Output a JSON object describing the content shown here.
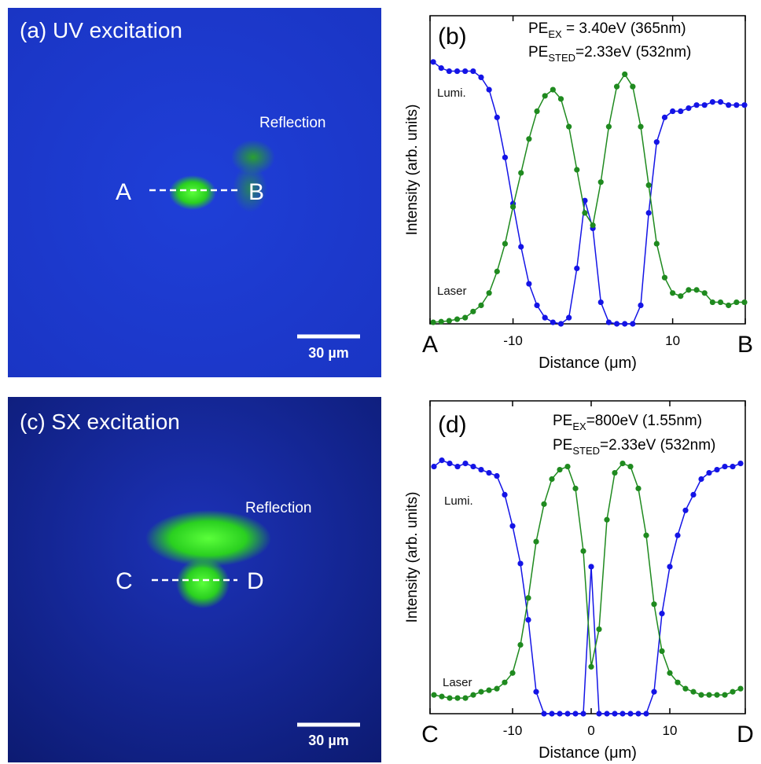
{
  "images": [
    {
      "title": "(a) UV excitation",
      "reflection": "Reflection",
      "start": "A",
      "end": "B",
      "scale_bar": "30 µm"
    },
    {
      "title": "(c) SX excitation",
      "reflection": "Reflection",
      "start": "C",
      "end": "D",
      "scale_bar": "30 µm"
    }
  ],
  "chart_data": [
    {
      "type": "line",
      "panel_label": "(b)",
      "notes": [
        {
          "main": "PE",
          "sub": "EX",
          "rest": " = 3.40eV (365nm)"
        },
        {
          "main": "PE",
          "sub": "STED",
          "rest": "=2.33eV (532nm)"
        }
      ],
      "x_label": "Distance (μm)",
      "y_label": "Intensity (arb. units)",
      "x": [
        -20,
        -19,
        -18,
        -17,
        -16,
        -15,
        -14,
        -13,
        -12,
        -11,
        -10,
        -9,
        -8,
        -7,
        -6,
        -5,
        -4,
        -3,
        -2,
        -1,
        0,
        1,
        2,
        3,
        4,
        5,
        6,
        7,
        8,
        9,
        10,
        11,
        12,
        13,
        14,
        15,
        16,
        17,
        18,
        19
      ],
      "series": [
        {
          "name": "Lumi.",
          "color": "#1414e6",
          "values": [
            0.85,
            0.83,
            0.82,
            0.82,
            0.82,
            0.82,
            0.8,
            0.76,
            0.67,
            0.54,
            0.39,
            0.25,
            0.13,
            0.06,
            0.02,
            0.005,
            0,
            0.02,
            0.18,
            0.4,
            0.31,
            0.07,
            0.005,
            0,
            0,
            0,
            0.06,
            0.36,
            0.59,
            0.67,
            0.69,
            0.69,
            0.7,
            0.71,
            0.71,
            0.72,
            0.72,
            0.71,
            0.71,
            0.71
          ]
        },
        {
          "name": "Laser",
          "color": "#1f8a1f",
          "values": [
            0.005,
            0.007,
            0.01,
            0.015,
            0.02,
            0.04,
            0.06,
            0.1,
            0.17,
            0.26,
            0.38,
            0.49,
            0.6,
            0.69,
            0.74,
            0.76,
            0.73,
            0.64,
            0.5,
            0.36,
            0.32,
            0.46,
            0.64,
            0.77,
            0.81,
            0.77,
            0.64,
            0.45,
            0.26,
            0.15,
            0.1,
            0.09,
            0.11,
            0.11,
            0.1,
            0.07,
            0.07,
            0.06,
            0.07,
            0.07
          ]
        }
      ],
      "xlim": [
        -20.4,
        19.1
      ],
      "ylim": [
        0,
        1
      ],
      "xticks": [
        {
          "value": -20.4,
          "label": "A"
        },
        -10,
        10,
        {
          "value": 19.1,
          "label": "B"
        }
      ]
    },
    {
      "type": "line",
      "panel_label": "(d)",
      "notes": [
        {
          "main": "PE",
          "sub": "EX",
          "rest": "=800eV (1.55nm)"
        },
        {
          "main": "PE",
          "sub": "STED",
          "rest": "=2.33eV (532nm)"
        }
      ],
      "x_label": "Distance (μm)",
      "y_label": "Intensity (arb. units)",
      "x": [
        -20,
        -19,
        -18,
        -17,
        -16,
        -15,
        -14,
        -13,
        -12,
        -11,
        -10,
        -9,
        -8,
        -7,
        -6,
        -5,
        -4,
        -3,
        -2,
        -1,
        0,
        1,
        2,
        3,
        4,
        5,
        6,
        7,
        8,
        9,
        10,
        11,
        12,
        13,
        14,
        15,
        16,
        17,
        18,
        19
      ],
      "series": [
        {
          "name": "Lumi.",
          "color": "#1414e6",
          "values": [
            0.79,
            0.81,
            0.8,
            0.79,
            0.8,
            0.79,
            0.78,
            0.77,
            0.76,
            0.7,
            0.6,
            0.48,
            0.3,
            0.07,
            0,
            0,
            0,
            0,
            0,
            0,
            0.47,
            0,
            0,
            0,
            0,
            0,
            0,
            0,
            0.07,
            0.32,
            0.47,
            0.57,
            0.65,
            0.7,
            0.75,
            0.77,
            0.78,
            0.79,
            0.79,
            0.8
          ]
        },
        {
          "name": "Laser",
          "color": "#1f8a1f",
          "values": [
            0.06,
            0.055,
            0.05,
            0.05,
            0.05,
            0.06,
            0.07,
            0.075,
            0.08,
            0.1,
            0.13,
            0.22,
            0.37,
            0.55,
            0.67,
            0.75,
            0.78,
            0.79,
            0.72,
            0.52,
            0.15,
            0.27,
            0.62,
            0.77,
            0.8,
            0.79,
            0.72,
            0.57,
            0.35,
            0.2,
            0.13,
            0.1,
            0.08,
            0.07,
            0.06,
            0.06,
            0.06,
            0.06,
            0.07,
            0.08
          ]
        }
      ],
      "xlim": [
        -20.5,
        19.6
      ],
      "ylim": [
        0,
        1
      ],
      "xticks": [
        {
          "value": -20.5,
          "label": "C"
        },
        -10,
        0,
        10,
        {
          "value": 19.6,
          "label": "D"
        }
      ]
    }
  ]
}
